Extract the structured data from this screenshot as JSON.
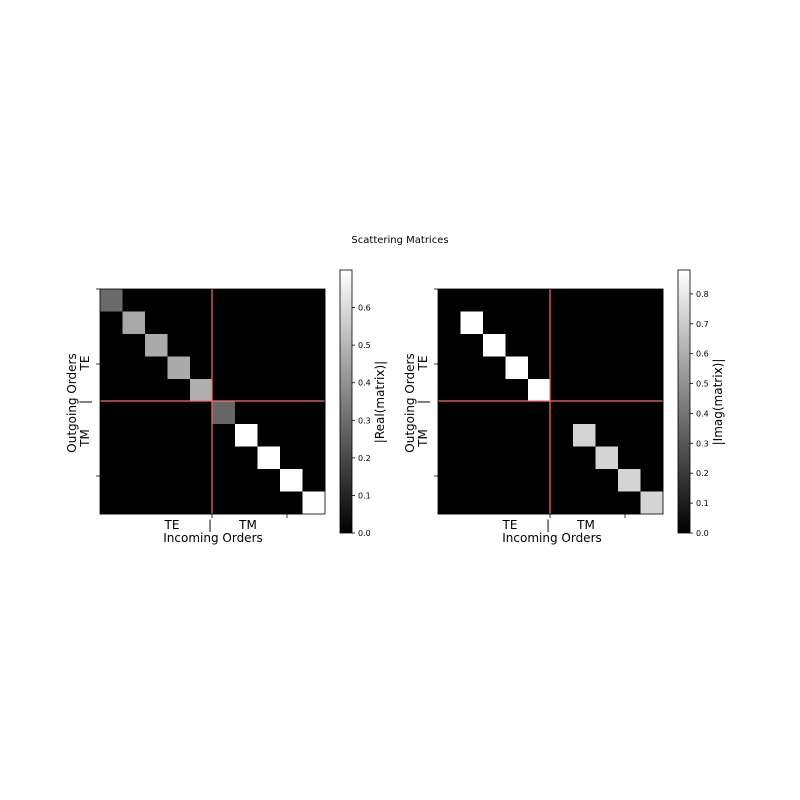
{
  "figure": {
    "title": "Scattering Matrices",
    "background": "#ffffff"
  },
  "chart_data": [
    {
      "type": "heatmap",
      "xlabel": "Incoming Orders",
      "ylabel": "Outgoing Orders",
      "x_tick_labels": [
        "TE",
        "|",
        "TM"
      ],
      "y_tick_labels": [
        "TE",
        "|",
        "TM"
      ],
      "colorbar_label": "|Real(matrix)|",
      "colorbar_ticks": [
        0.0,
        0.1,
        0.2,
        0.3,
        0.4,
        0.5,
        0.6
      ],
      "colorbar_tick_labels": [
        "0.0",
        "0.1",
        "0.2",
        "0.3",
        "0.4",
        "0.5",
        "0.6"
      ],
      "vmin": 0,
      "vmax": 0.7,
      "colormap": "gray",
      "divider_color": "#ff6b6b",
      "size": 10,
      "diagonal": [
        0.29,
        0.46,
        0.47,
        0.47,
        0.48,
        0.28,
        0.7,
        0.7,
        0.7,
        0.7
      ]
    },
    {
      "type": "heatmap",
      "xlabel": "Incoming Orders",
      "ylabel": "Outgoing Orders",
      "x_tick_labels": [
        "TE",
        "|",
        "TM"
      ],
      "y_tick_labels": [
        "TE",
        "|",
        "TM"
      ],
      "colorbar_label": "|Imag(matrix)|",
      "colorbar_ticks": [
        0.0,
        0.1,
        0.2,
        0.3,
        0.4,
        0.5,
        0.6,
        0.7,
        0.8
      ],
      "colorbar_tick_labels": [
        "0.0",
        "0.1",
        "0.2",
        "0.3",
        "0.4",
        "0.5",
        "0.6",
        "0.7",
        "0.8"
      ],
      "vmin": 0,
      "vmax": 0.88,
      "colormap": "gray",
      "divider_color": "#ff6b6b",
      "size": 10,
      "diagonal": [
        0.0,
        0.88,
        0.88,
        0.88,
        0.88,
        0.0,
        0.73,
        0.73,
        0.73,
        0.73
      ]
    }
  ]
}
